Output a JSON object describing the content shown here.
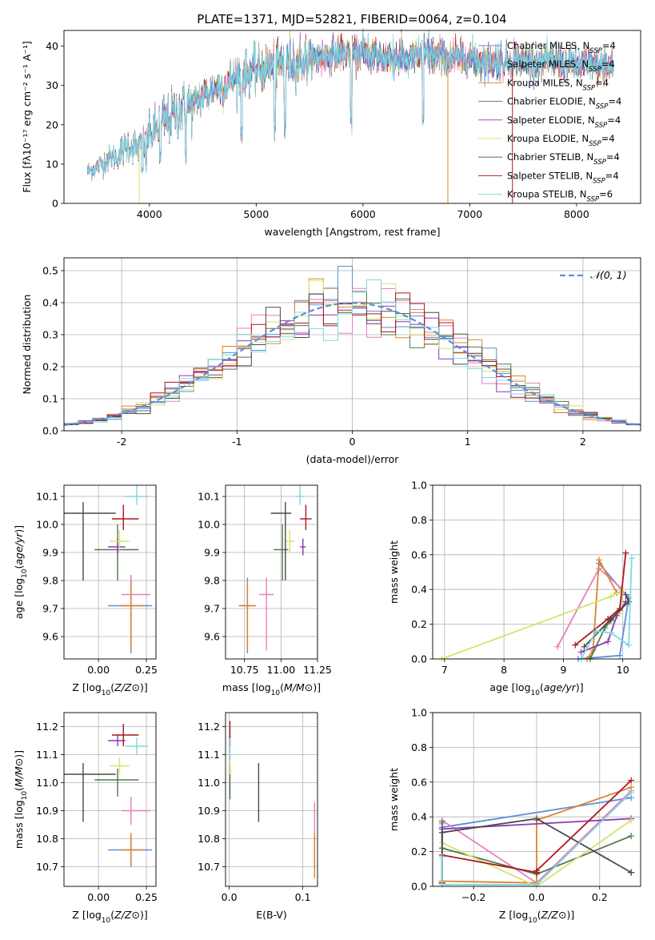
{
  "figure_title": "PLATE=1371, MJD=52821, FIBERID=0064, z=0.104",
  "models": [
    {
      "name": "Chabrier MILES, N",
      "sub": "SSP",
      "suffix": "=4",
      "color": "#5b8fd8"
    },
    {
      "name": "Salpeter MILES, N",
      "sub": "SSP",
      "suffix": "=4",
      "color": "#e87fbf"
    },
    {
      "name": "Kroupa MILES, N",
      "sub": "SSP",
      "suffix": "=4",
      "color": "#e0822a"
    },
    {
      "name": "Chabrier ELODIE, N",
      "sub": "SSP",
      "suffix": "=4",
      "color": "#4c7a4c"
    },
    {
      "name": "Salpeter ELODIE, N",
      "sub": "SSP",
      "suffix": "=4",
      "color": "#8e35b5"
    },
    {
      "name": "Kroupa ELODIE, N",
      "sub": "SSP",
      "suffix": "=4",
      "color": "#d6e36a"
    },
    {
      "name": "Chabrier STELIB, N",
      "sub": "SSP",
      "suffix": "=4",
      "color": "#4a4a4a"
    },
    {
      "name": "Salpeter STELIB, N",
      "sub": "SSP",
      "suffix": "=4",
      "color": "#b0141c"
    },
    {
      "name": "Kroupa STELIB, N",
      "sub": "SSP",
      "suffix": "=6",
      "color": "#7ed8e0"
    }
  ],
  "chart_data": [
    {
      "id": "spectrum",
      "type": "line",
      "xlabel": "wavelength [Angstrom, rest frame]",
      "ylabel": "Flux [fλ10⁻¹⁷ erg cm⁻² s⁻¹ A⁻¹]",
      "xlim": [
        3200,
        8600
      ],
      "ylim": [
        0,
        44
      ],
      "xticks": [
        4000,
        5000,
        6000,
        7000,
        8000
      ],
      "yticks": [
        0,
        10,
        20,
        30,
        40
      ],
      "grid": false,
      "legend": "right",
      "continuum": {
        "x": [
          3420,
          3500,
          3600,
          3700,
          3800,
          3900,
          4000,
          4100,
          4200,
          4300,
          4400,
          4500,
          4600,
          4700,
          4800,
          4900,
          5000,
          5200,
          5400,
          5600,
          5800,
          6000,
          6200,
          6400,
          6600,
          6800,
          7000,
          7200,
          7400,
          7600,
          7800,
          8000,
          8200,
          8350
        ],
        "y": [
          8,
          9,
          11,
          12,
          15,
          14,
          17,
          20,
          22,
          24,
          25,
          27,
          29,
          30,
          32,
          33,
          34,
          35,
          36,
          37,
          38,
          38,
          37,
          37,
          38,
          37,
          37,
          36,
          36,
          36,
          36,
          35,
          35,
          35
        ]
      }
    },
    {
      "id": "residuals",
      "type": "step",
      "xlabel": "(data-model)/error",
      "ylabel": "Normed distribution",
      "xlim": [
        -2.5,
        2.5
      ],
      "ylim": [
        0,
        0.54
      ],
      "xticks": [
        -2,
        -1,
        0,
        1,
        2
      ],
      "yticks": [
        0,
        0.1,
        0.2,
        0.3,
        0.4,
        0.5
      ],
      "grid": true,
      "legend": "top-right",
      "bin_width": 0.125,
      "gaussian_label": "𝒩(0, 1)",
      "gaussian_color": "#5b8fd8"
    },
    {
      "id": "age_vs_Z",
      "type": "errorbar",
      "xlabel": "Z [log10(Z/Z⊙)]",
      "ylabel": "age  [log10(age/yr)]",
      "xlim": [
        -0.18,
        0.3
      ],
      "ylim": [
        9.52,
        10.14
      ],
      "xticks": [
        0.0,
        0.25
      ],
      "xticklabels": [
        "0.00",
        "0.25"
      ],
      "yticks": [
        9.6,
        9.7,
        9.8,
        9.9,
        10.0,
        10.1
      ],
      "grid": true,
      "points": [
        {
          "m": 0,
          "x": 0.17,
          "y": 9.71,
          "xerr": [
            0.12,
            0.11
          ],
          "yerr": [
            0.17,
            0.11
          ]
        },
        {
          "m": 1,
          "x": 0.17,
          "y": 9.75,
          "xerr": [
            0.05,
            0.1
          ],
          "yerr": [
            0.2,
            0.07
          ]
        },
        {
          "m": 2,
          "x": 0.17,
          "y": 9.71,
          "xerr": [
            0.06,
            0.07
          ],
          "yerr": [
            0.16,
            0.09
          ]
        },
        {
          "m": 3,
          "x": 0.1,
          "y": 9.91,
          "xerr": [
            0.12,
            0.11
          ],
          "yerr": [
            0.11,
            0.09
          ]
        },
        {
          "m": 4,
          "x": 0.1,
          "y": 9.92,
          "xerr": [
            0.05,
            0.04
          ],
          "yerr": [
            0.03,
            0.03
          ]
        },
        {
          "m": 5,
          "x": 0.11,
          "y": 9.94,
          "xerr": [
            0.05,
            0.05
          ],
          "yerr": [
            0.04,
            0.04
          ]
        },
        {
          "m": 6,
          "x": -0.08,
          "y": 10.04,
          "xerr": [
            0.17,
            0.17
          ],
          "yerr": [
            0.24,
            0.04
          ]
        },
        {
          "m": 7,
          "x": 0.13,
          "y": 10.02,
          "xerr": [
            0.06,
            0.08
          ],
          "yerr": [
            0.04,
            0.05
          ]
        },
        {
          "m": 8,
          "x": 0.2,
          "y": 10.1,
          "xerr": [
            0.06,
            0.06
          ],
          "yerr": [
            0.03,
            0.04
          ]
        }
      ]
    },
    {
      "id": "age_vs_mass",
      "type": "errorbar",
      "xlabel": "mass [log10(M/M⊙)]",
      "ylabel": "",
      "xlim": [
        10.62,
        11.25
      ],
      "ylim": [
        9.52,
        10.14
      ],
      "xticks": [
        10.75,
        11.0,
        11.25
      ],
      "xticklabels": [
        "10.75",
        "11.00",
        "11.25"
      ],
      "yticks": [
        9.6,
        9.7,
        9.8,
        9.9,
        10.0,
        10.1
      ],
      "grid": true,
      "points": [
        {
          "m": 0,
          "x": 10.77,
          "y": 9.71,
          "xerr": [
            0.05,
            0.05
          ],
          "yerr": [
            0.17,
            0.1
          ]
        },
        {
          "m": 1,
          "x": 10.9,
          "y": 9.75,
          "xerr": [
            0.05,
            0.05
          ],
          "yerr": [
            0.2,
            0.06
          ]
        },
        {
          "m": 2,
          "x": 10.77,
          "y": 9.71,
          "xerr": [
            0.06,
            0.06
          ],
          "yerr": [
            0.16,
            0.09
          ]
        },
        {
          "m": 3,
          "x": 11.01,
          "y": 9.91,
          "xerr": [
            0.06,
            0.04
          ],
          "yerr": [
            0.11,
            0.09
          ]
        },
        {
          "m": 4,
          "x": 11.15,
          "y": 9.92,
          "xerr": [
            0.02,
            0.02
          ],
          "yerr": [
            0.03,
            0.03
          ]
        },
        {
          "m": 5,
          "x": 11.06,
          "y": 9.94,
          "xerr": [
            0.03,
            0.03
          ],
          "yerr": [
            0.04,
            0.04
          ]
        },
        {
          "m": 6,
          "x": 11.03,
          "y": 10.04,
          "xerr": [
            0.1,
            0.04
          ],
          "yerr": [
            0.24,
            0.04
          ]
        },
        {
          "m": 7,
          "x": 11.17,
          "y": 10.02,
          "xerr": [
            0.04,
            0.04
          ],
          "yerr": [
            0.04,
            0.05
          ]
        },
        {
          "m": 8,
          "x": 11.13,
          "y": 10.1,
          "xerr": [
            0.03,
            0.03
          ],
          "yerr": [
            0.03,
            0.04
          ]
        }
      ]
    },
    {
      "id": "massweight_vs_age",
      "type": "line",
      "xlabel": "age  [log10(age/yr)]",
      "ylabel": "mass weight",
      "xlim": [
        6.8,
        10.3
      ],
      "ylim": [
        0,
        1
      ],
      "xticks": [
        7,
        8,
        9,
        10
      ],
      "yticks": [
        0,
        0.2,
        0.4,
        0.6,
        0.8,
        1.0
      ],
      "grid": true,
      "series": [
        {
          "m": 0,
          "x": [
            9.25,
            9.95,
            10.1,
            9.6
          ],
          "y": [
            0.0,
            0.02,
            0.35,
            0.55
          ]
        },
        {
          "m": 1,
          "x": 8.9,
          "y": 0.07,
          "xs": [
            8.9,
            9.6,
            10.0,
            9.95
          ],
          "ys": [
            0.07,
            0.52,
            0.4,
            0.29
          ]
        },
        {
          "m": 2,
          "x": [
            9.4,
            9.5,
            9.6,
            9.9
          ],
          "y": [
            0.0,
            0.05,
            0.57,
            0.38
          ]
        },
        {
          "m": 3,
          "x": [
            9.45,
            9.7,
            9.8,
            9.95
          ],
          "y": [
            0.0,
            0.18,
            0.22,
            0.28
          ]
        },
        {
          "m": 4,
          "x": [
            9.3,
            9.75,
            9.9,
            10.05
          ],
          "y": [
            0.04,
            0.1,
            0.25,
            0.33
          ]
        },
        {
          "m": 5,
          "x": [
            6.95,
            9.8,
            10.0,
            9.95
          ],
          "y": [
            0.0,
            0.36,
            0.4,
            0.26
          ]
        },
        {
          "m": 6,
          "x": [
            9.35,
            9.8,
            10.1,
            10.05
          ],
          "y": [
            0.07,
            0.23,
            0.33,
            0.37
          ]
        },
        {
          "m": 7,
          "x": [
            9.2,
            9.75,
            9.95,
            10.05
          ],
          "y": [
            0.08,
            0.23,
            0.29,
            0.61
          ]
        },
        {
          "m": 8,
          "x": [
            9.3,
            9.55,
            9.8,
            10.1,
            10.15
          ],
          "y": [
            0.0,
            0.16,
            0.15,
            0.08,
            0.58
          ]
        }
      ]
    },
    {
      "id": "mass_vs_Z",
      "type": "errorbar",
      "xlabel": "Z [log10(Z/Z⊙)]",
      "ylabel": "mass [log10(M/M⊙)]",
      "xlim": [
        -0.18,
        0.3
      ],
      "ylim": [
        10.63,
        11.25
      ],
      "xticks": [
        0.0,
        0.25
      ],
      "xticklabels": [
        "0.00",
        "0.25"
      ],
      "yticks": [
        10.7,
        10.8,
        10.9,
        11.0,
        11.1,
        11.2
      ],
      "grid": true,
      "points": [
        {
          "m": 0,
          "x": 0.17,
          "y": 10.76,
          "xerr": [
            0.12,
            0.11
          ],
          "yerr": [
            0.06,
            0.05
          ]
        },
        {
          "m": 1,
          "x": 0.17,
          "y": 10.9,
          "xerr": [
            0.05,
            0.1
          ],
          "yerr": [
            0.05,
            0.05
          ]
        },
        {
          "m": 2,
          "x": 0.17,
          "y": 10.76,
          "xerr": [
            0.06,
            0.07
          ],
          "yerr": [
            0.06,
            0.06
          ]
        },
        {
          "m": 3,
          "x": 0.1,
          "y": 11.01,
          "xerr": [
            0.12,
            0.11
          ],
          "yerr": [
            0.06,
            0.04
          ]
        },
        {
          "m": 4,
          "x": 0.1,
          "y": 11.15,
          "xerr": [
            0.05,
            0.04
          ],
          "yerr": [
            0.02,
            0.02
          ]
        },
        {
          "m": 5,
          "x": 0.11,
          "y": 11.06,
          "xerr": [
            0.05,
            0.05
          ],
          "yerr": [
            0.03,
            0.03
          ]
        },
        {
          "m": 6,
          "x": -0.08,
          "y": 11.03,
          "xerr": [
            0.17,
            0.17
          ],
          "yerr": [
            0.17,
            0.04
          ]
        },
        {
          "m": 7,
          "x": 0.13,
          "y": 11.17,
          "xerr": [
            0.06,
            0.08
          ],
          "yerr": [
            0.04,
            0.04
          ]
        },
        {
          "m": 8,
          "x": 0.2,
          "y": 11.13,
          "xerr": [
            0.06,
            0.06
          ],
          "yerr": [
            0.03,
            0.03
          ]
        }
      ]
    },
    {
      "id": "mass_vs_ebv",
      "type": "errorbar",
      "xlabel": "E(B-V)",
      "ylabel": "",
      "xlim": [
        -0.005,
        0.12
      ],
      "ylim": [
        10.63,
        11.25
      ],
      "xticks": [
        0.0,
        0.1
      ],
      "xticklabels": [
        "0.0",
        "0.1"
      ],
      "yticks": [
        10.7,
        10.8,
        10.9,
        11.0,
        11.1,
        11.2
      ],
      "grid": true,
      "points": [
        {
          "m": 0,
          "x": 0.116,
          "y": 10.76,
          "xerr": [
            0,
            0
          ],
          "yerr": [
            0.06,
            0.05
          ]
        },
        {
          "m": 1,
          "x": 0.116,
          "y": 10.85,
          "xerr": [
            0,
            0
          ],
          "yerr": [
            0.1,
            0.08
          ]
        },
        {
          "m": 2,
          "x": 0.116,
          "y": 10.76,
          "xerr": [
            0,
            0
          ],
          "yerr": [
            0.1,
            0.06
          ]
        },
        {
          "m": 3,
          "x": 0.001,
          "y": 11.02,
          "xerr": [
            0,
            0
          ],
          "yerr": [
            0.08,
            0.04
          ]
        },
        {
          "m": 4,
          "x": 0.001,
          "y": 11.15,
          "xerr": [
            0,
            0
          ],
          "yerr": [
            0.02,
            0.02
          ]
        },
        {
          "m": 5,
          "x": 0.001,
          "y": 11.06,
          "xerr": [
            0,
            0
          ],
          "yerr": [
            0.03,
            0.03
          ]
        },
        {
          "m": 6,
          "x": 0.04,
          "y": 10.97,
          "xerr": [
            0,
            0
          ],
          "yerr": [
            0.11,
            0.1
          ]
        },
        {
          "m": 7,
          "x": 0.001,
          "y": 11.17,
          "xerr": [
            0,
            0
          ],
          "yerr": [
            0.04,
            0.05
          ]
        },
        {
          "m": 8,
          "x": 0.001,
          "y": 11.12,
          "xerr": [
            0,
            0
          ],
          "yerr": [
            0.04,
            0.04
          ]
        }
      ]
    },
    {
      "id": "massweight_vs_Z",
      "type": "line",
      "xlabel": "Z [log10(Z/Z⊙)]",
      "ylabel": "mass weight",
      "xlim": [
        -0.33,
        0.33
      ],
      "ylim": [
        0,
        1
      ],
      "xticks": [
        -0.2,
        0.0,
        0.2
      ],
      "xticklabels": [
        "−0.2",
        "0.0",
        "0.2"
      ],
      "yticks": [
        0,
        0.2,
        0.4,
        0.6,
        0.8,
        1.0
      ],
      "grid": true,
      "series": [
        {
          "m": 0,
          "x": [
            0.3,
            -0.3,
            -0.3
          ],
          "y": [
            0.51,
            0.34,
            0.02
          ]
        },
        {
          "m": 1,
          "x": [
            0.3,
            0.0,
            -0.3,
            -0.3
          ],
          "y": [
            0.55,
            0.02,
            0.38,
            0.36
          ]
        },
        {
          "m": 2,
          "x": [
            0.3,
            0.0,
            0.0,
            -0.3
          ],
          "y": [
            0.57,
            0.38,
            0.02,
            0.03
          ]
        },
        {
          "m": 3,
          "x": [
            0.3,
            0.0,
            -0.3,
            -0.3
          ],
          "y": [
            0.29,
            0.07,
            0.22,
            0.37
          ]
        },
        {
          "m": 4,
          "x": [
            0.3,
            -0.3,
            -0.3
          ],
          "y": [
            0.39,
            0.33,
            0.02
          ]
        },
        {
          "m": 5,
          "x": [
            0.3,
            0.0,
            -0.3,
            -0.3
          ],
          "y": [
            0.38,
            0.0,
            0.25,
            0.02
          ]
        },
        {
          "m": 6,
          "x": [
            0.3,
            0.3,
            0.0,
            -0.3,
            -0.3
          ],
          "y": [
            0.08,
            0.08,
            0.39,
            0.31,
            0.02
          ]
        },
        {
          "m": 7,
          "x": [
            0.3,
            0.0,
            0.0,
            -0.3,
            -0.3
          ],
          "y": [
            0.61,
            0.09,
            0.08,
            0.18,
            0.02
          ]
        },
        {
          "m": 8,
          "x": [
            0.3,
            0.0,
            -0.3,
            -0.3
          ],
          "y": [
            0.54,
            0.01,
            0.01,
            0.17
          ]
        }
      ]
    }
  ]
}
